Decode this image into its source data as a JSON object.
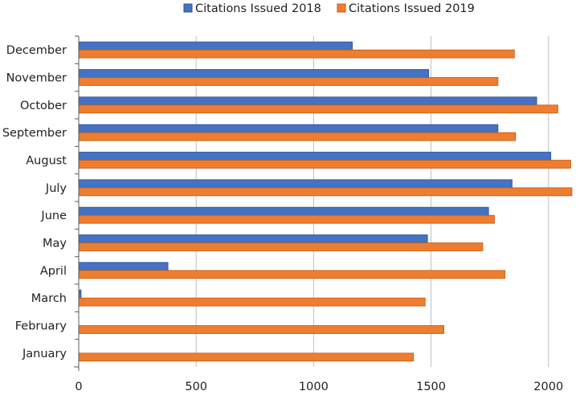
{
  "chart_data": {
    "type": "bar",
    "orientation": "horizontal",
    "categories": [
      "January",
      "February",
      "March",
      "April",
      "May",
      "June",
      "July",
      "August",
      "September",
      "October",
      "November",
      "December"
    ],
    "series": [
      {
        "name": "Citations Issued 2018",
        "color": "#4472C4",
        "values": [
          0,
          0,
          10,
          380,
          1485,
          1745,
          1845,
          2010,
          1785,
          1950,
          1490,
          1165
        ]
      },
      {
        "name": "Citations Issued 2019",
        "color": "#ED7D31",
        "values": [
          1425,
          1555,
          1475,
          1815,
          1720,
          1770,
          2100,
          2095,
          1860,
          2040,
          1785,
          1855
        ]
      }
    ],
    "xlim": [
      0,
      2100
    ],
    "xticks": [
      0,
      500,
      1000,
      1500,
      2000
    ],
    "xtick_labels": [
      "0",
      "500",
      "1000",
      "1500",
      "2000"
    ],
    "grid": "vertical",
    "legend_position": "top",
    "title": "",
    "xlabel": "",
    "ylabel": ""
  }
}
